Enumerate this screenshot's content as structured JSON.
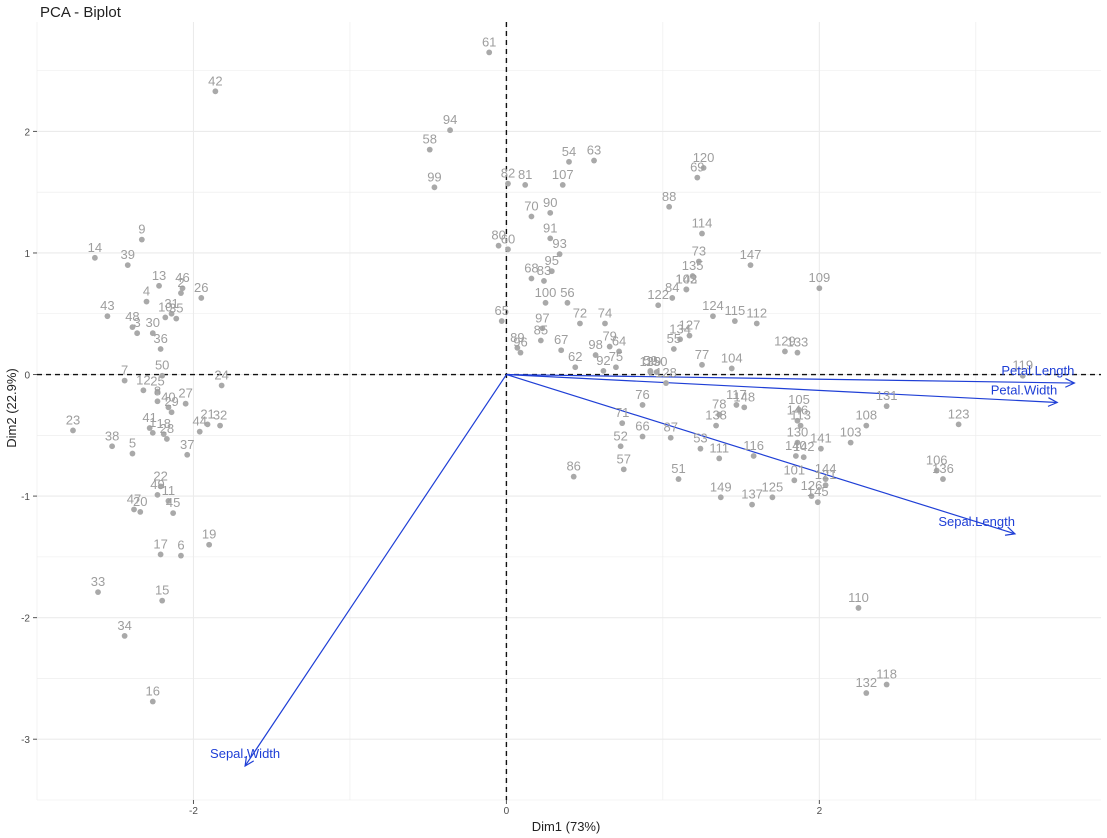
{
  "chart_data": {
    "type": "scatter",
    "title": "PCA - Biplot",
    "xlabel": "Dim1 (73%)",
    "ylabel": "Dim2 (22.9%)",
    "xlim": [
      -3.0,
      3.8
    ],
    "ylim": [
      -3.5,
      2.9
    ],
    "xticks": [
      -2,
      0,
      2
    ],
    "yticks": [
      -3,
      -2,
      -1,
      0,
      1,
      2
    ],
    "grid": true,
    "reference_lines": "dashed x=0 and y=0",
    "point_color": "#a9a9a9",
    "arrow_color": "#1f3fd6",
    "points": [
      {
        "label": "1",
        "x": -2.26,
        "y": -0.48
      },
      {
        "label": "2",
        "x": -2.08,
        "y": 0.67
      },
      {
        "label": "3",
        "x": -2.36,
        "y": 0.34
      },
      {
        "label": "4",
        "x": -2.3,
        "y": 0.6
      },
      {
        "label": "5",
        "x": -2.39,
        "y": -0.65
      },
      {
        "label": "6",
        "x": -2.08,
        "y": -1.49
      },
      {
        "label": "7",
        "x": -2.44,
        "y": -0.05
      },
      {
        "label": "8",
        "x": -2.23,
        "y": -0.22
      },
      {
        "label": "9",
        "x": -2.33,
        "y": 1.11
      },
      {
        "label": "10",
        "x": -2.18,
        "y": 0.47
      },
      {
        "label": "11",
        "x": -2.16,
        "y": -1.04
      },
      {
        "label": "12",
        "x": -2.32,
        "y": -0.13
      },
      {
        "label": "13",
        "x": -2.22,
        "y": 0.73
      },
      {
        "label": "14",
        "x": -2.63,
        "y": 0.96
      },
      {
        "label": "15",
        "x": -2.2,
        "y": -1.86
      },
      {
        "label": "16",
        "x": -2.26,
        "y": -2.69
      },
      {
        "label": "17",
        "x": -2.21,
        "y": -1.48
      },
      {
        "label": "18",
        "x": -2.19,
        "y": -0.49
      },
      {
        "label": "19",
        "x": -1.9,
        "y": -1.4
      },
      {
        "label": "20",
        "x": -2.34,
        "y": -1.13
      },
      {
        "label": "21",
        "x": -1.91,
        "y": -0.41
      },
      {
        "label": "22",
        "x": -2.21,
        "y": -0.92
      },
      {
        "label": "23",
        "x": -2.77,
        "y": -0.46
      },
      {
        "label": "24",
        "x": -1.82,
        "y": -0.09
      },
      {
        "label": "25",
        "x": -2.23,
        "y": -0.14
      },
      {
        "label": "26",
        "x": -1.95,
        "y": 0.63
      },
      {
        "label": "27",
        "x": -2.05,
        "y": -0.24
      },
      {
        "label": "28",
        "x": -2.17,
        "y": -0.53
      },
      {
        "label": "29",
        "x": -2.14,
        "y": -0.31
      },
      {
        "label": "30",
        "x": -2.26,
        "y": 0.34
      },
      {
        "label": "31",
        "x": -2.14,
        "y": 0.5
      },
      {
        "label": "32",
        "x": -1.83,
        "y": -0.42
      },
      {
        "label": "33",
        "x": -2.61,
        "y": -1.79
      },
      {
        "label": "34",
        "x": -2.44,
        "y": -2.15
      },
      {
        "label": "35",
        "x": -2.11,
        "y": 0.46
      },
      {
        "label": "36",
        "x": -2.21,
        "y": 0.21
      },
      {
        "label": "37",
        "x": -2.04,
        "y": -0.66
      },
      {
        "label": "38",
        "x": -2.52,
        "y": -0.59
      },
      {
        "label": "39",
        "x": -2.42,
        "y": 0.9
      },
      {
        "label": "40",
        "x": -2.16,
        "y": -0.27
      },
      {
        "label": "41",
        "x": -2.28,
        "y": -0.44
      },
      {
        "label": "42",
        "x": -1.86,
        "y": 2.33
      },
      {
        "label": "43",
        "x": -2.55,
        "y": 0.48
      },
      {
        "label": "44",
        "x": -1.96,
        "y": -0.47
      },
      {
        "label": "45",
        "x": -2.13,
        "y": -1.14
      },
      {
        "label": "46",
        "x": -2.07,
        "y": 0.71
      },
      {
        "label": "47",
        "x": -2.38,
        "y": -1.11
      },
      {
        "label": "48",
        "x": -2.39,
        "y": 0.39
      },
      {
        "label": "49",
        "x": -2.23,
        "y": -0.99
      },
      {
        "label": "50",
        "x": -2.2,
        "y": -0.01
      },
      {
        "label": "51",
        "x": 1.1,
        "y": -0.86
      },
      {
        "label": "52",
        "x": 0.73,
        "y": -0.59
      },
      {
        "label": "53",
        "x": 1.24,
        "y": -0.61
      },
      {
        "label": "54",
        "x": 0.4,
        "y": 1.75
      },
      {
        "label": "55",
        "x": 1.07,
        "y": 0.21
      },
      {
        "label": "56",
        "x": 0.39,
        "y": 0.59
      },
      {
        "label": "57",
        "x": 0.75,
        "y": -0.78
      },
      {
        "label": "58",
        "x": -0.49,
        "y": 1.85
      },
      {
        "label": "59",
        "x": 0.92,
        "y": 0.03
      },
      {
        "label": "60",
        "x": 0.01,
        "y": 1.03
      },
      {
        "label": "61",
        "x": -0.11,
        "y": 2.65
      },
      {
        "label": "62",
        "x": 0.44,
        "y": 0.06
      },
      {
        "label": "63",
        "x": 0.56,
        "y": 1.76
      },
      {
        "label": "64",
        "x": 0.72,
        "y": 0.19
      },
      {
        "label": "65",
        "x": -0.03,
        "y": 0.44
      },
      {
        "label": "66",
        "x": 0.87,
        "y": -0.51
      },
      {
        "label": "67",
        "x": 0.35,
        "y": 0.2
      },
      {
        "label": "68",
        "x": 0.16,
        "y": 0.79
      },
      {
        "label": "69",
        "x": 1.22,
        "y": 1.62
      },
      {
        "label": "70",
        "x": 0.16,
        "y": 1.3
      },
      {
        "label": "71",
        "x": 0.74,
        "y": -0.4
      },
      {
        "label": "72",
        "x": 0.47,
        "y": 0.42
      },
      {
        "label": "73",
        "x": 1.23,
        "y": 0.93
      },
      {
        "label": "74",
        "x": 0.63,
        "y": 0.42
      },
      {
        "label": "75",
        "x": 0.7,
        "y": 0.06
      },
      {
        "label": "76",
        "x": 0.87,
        "y": -0.25
      },
      {
        "label": "77",
        "x": 1.25,
        "y": 0.08
      },
      {
        "label": "78",
        "x": 1.36,
        "y": -0.33
      },
      {
        "label": "79",
        "x": 0.66,
        "y": 0.23
      },
      {
        "label": "80",
        "x": -0.05,
        "y": 1.06
      },
      {
        "label": "81",
        "x": 0.12,
        "y": 1.56
      },
      {
        "label": "82",
        "x": 0.01,
        "y": 1.57
      },
      {
        "label": "83",
        "x": 0.24,
        "y": 0.77
      },
      {
        "label": "84",
        "x": 1.06,
        "y": 0.63
      },
      {
        "label": "85",
        "x": 0.22,
        "y": 0.28
      },
      {
        "label": "86",
        "x": 0.43,
        "y": -0.84
      },
      {
        "label": "87",
        "x": 1.05,
        "y": -0.52
      },
      {
        "label": "88",
        "x": 1.04,
        "y": 1.38
      },
      {
        "label": "89",
        "x": 0.07,
        "y": 0.22
      },
      {
        "label": "90",
        "x": 0.28,
        "y": 1.33
      },
      {
        "label": "91",
        "x": 0.28,
        "y": 1.12
      },
      {
        "label": "92",
        "x": 0.62,
        "y": 0.03
      },
      {
        "label": "93",
        "x": 0.34,
        "y": 0.99
      },
      {
        "label": "94",
        "x": -0.36,
        "y": 2.01
      },
      {
        "label": "95",
        "x": 0.29,
        "y": 0.85
      },
      {
        "label": "96",
        "x": 0.09,
        "y": 0.18
      },
      {
        "label": "97",
        "x": 0.23,
        "y": 0.38
      },
      {
        "label": "98",
        "x": 0.57,
        "y": 0.16
      },
      {
        "label": "99",
        "x": -0.46,
        "y": 1.54
      },
      {
        "label": "100",
        "x": 0.25,
        "y": 0.59
      },
      {
        "label": "101",
        "x": 1.84,
        "y": -0.87
      },
      {
        "label": "102",
        "x": 1.15,
        "y": 0.7
      },
      {
        "label": "103",
        "x": 2.2,
        "y": -0.56
      },
      {
        "label": "104",
        "x": 1.44,
        "y": 0.05
      },
      {
        "label": "105",
        "x": 1.87,
        "y": -0.29
      },
      {
        "label": "106",
        "x": 2.75,
        "y": -0.79
      },
      {
        "label": "107",
        "x": 0.36,
        "y": 1.56
      },
      {
        "label": "108",
        "x": 2.3,
        "y": -0.42
      },
      {
        "label": "109",
        "x": 2.0,
        "y": 0.71
      },
      {
        "label": "110",
        "x": 2.25,
        "y": -1.92
      },
      {
        "label": "111",
        "x": 1.36,
        "y": -0.69
      },
      {
        "label": "112",
        "x": 1.6,
        "y": 0.42
      },
      {
        "label": "113",
        "x": 1.88,
        "y": -0.42
      },
      {
        "label": "114",
        "x": 1.25,
        "y": 1.16
      },
      {
        "label": "115",
        "x": 1.46,
        "y": 0.44
      },
      {
        "label": "116",
        "x": 1.58,
        "y": -0.67
      },
      {
        "label": "117",
        "x": 1.47,
        "y": -0.25
      },
      {
        "label": "118",
        "x": 2.43,
        "y": -2.55
      },
      {
        "label": "119",
        "x": 3.3,
        "y": -0.01
      },
      {
        "label": "120",
        "x": 1.26,
        "y": 1.7
      },
      {
        "label": "121",
        "x": 2.04,
        "y": -0.91
      },
      {
        "label": "122",
        "x": 0.97,
        "y": 0.57
      },
      {
        "label": "123",
        "x": 2.89,
        "y": -0.41
      },
      {
        "label": "124",
        "x": 1.32,
        "y": 0.48
      },
      {
        "label": "125",
        "x": 1.7,
        "y": -1.01
      },
      {
        "label": "126",
        "x": 1.95,
        "y": -1.0
      },
      {
        "label": "127",
        "x": 1.17,
        "y": 0.32
      },
      {
        "label": "128",
        "x": 1.02,
        "y": -0.07
      },
      {
        "label": "129",
        "x": 1.78,
        "y": 0.19
      },
      {
        "label": "130",
        "x": 1.86,
        "y": -0.56
      },
      {
        "label": "131",
        "x": 2.43,
        "y": -0.26
      },
      {
        "label": "132",
        "x": 2.3,
        "y": -2.62
      },
      {
        "label": "133",
        "x": 1.86,
        "y": 0.18
      },
      {
        "label": "134",
        "x": 1.11,
        "y": 0.29
      },
      {
        "label": "135",
        "x": 1.19,
        "y": 0.81
      },
      {
        "label": "136",
        "x": 2.79,
        "y": -0.86
      },
      {
        "label": "137",
        "x": 1.57,
        "y": -1.07
      },
      {
        "label": "138",
        "x": 1.34,
        "y": -0.42
      },
      {
        "label": "139",
        "x": 0.92,
        "y": 0.02
      },
      {
        "label": "140",
        "x": 1.85,
        "y": -0.67
      },
      {
        "label": "141",
        "x": 2.01,
        "y": -0.61
      },
      {
        "label": "142",
        "x": 1.9,
        "y": -0.68
      },
      {
        "label": "143",
        "x": 1.15,
        "y": 0.7
      },
      {
        "label": "144",
        "x": 2.04,
        "y": -0.86
      },
      {
        "label": "145",
        "x": 1.99,
        "y": -1.05
      },
      {
        "label": "146",
        "x": 1.86,
        "y": -0.38
      },
      {
        "label": "147",
        "x": 1.56,
        "y": 0.9
      },
      {
        "label": "148",
        "x": 1.52,
        "y": -0.27
      },
      {
        "label": "149",
        "x": 1.37,
        "y": -1.01
      },
      {
        "label": "150",
        "x": 0.96,
        "y": 0.02
      }
    ],
    "variables": [
      {
        "name": "Sepal.Length",
        "x": 3.25,
        "y": -1.31
      },
      {
        "name": "Sepal.Width",
        "x": -1.67,
        "y": -3.22
      },
      {
        "name": "Petal.Length",
        "x": 3.63,
        "y": -0.07
      },
      {
        "name": "Petal.Width",
        "x": 3.52,
        "y": -0.23
      }
    ]
  }
}
